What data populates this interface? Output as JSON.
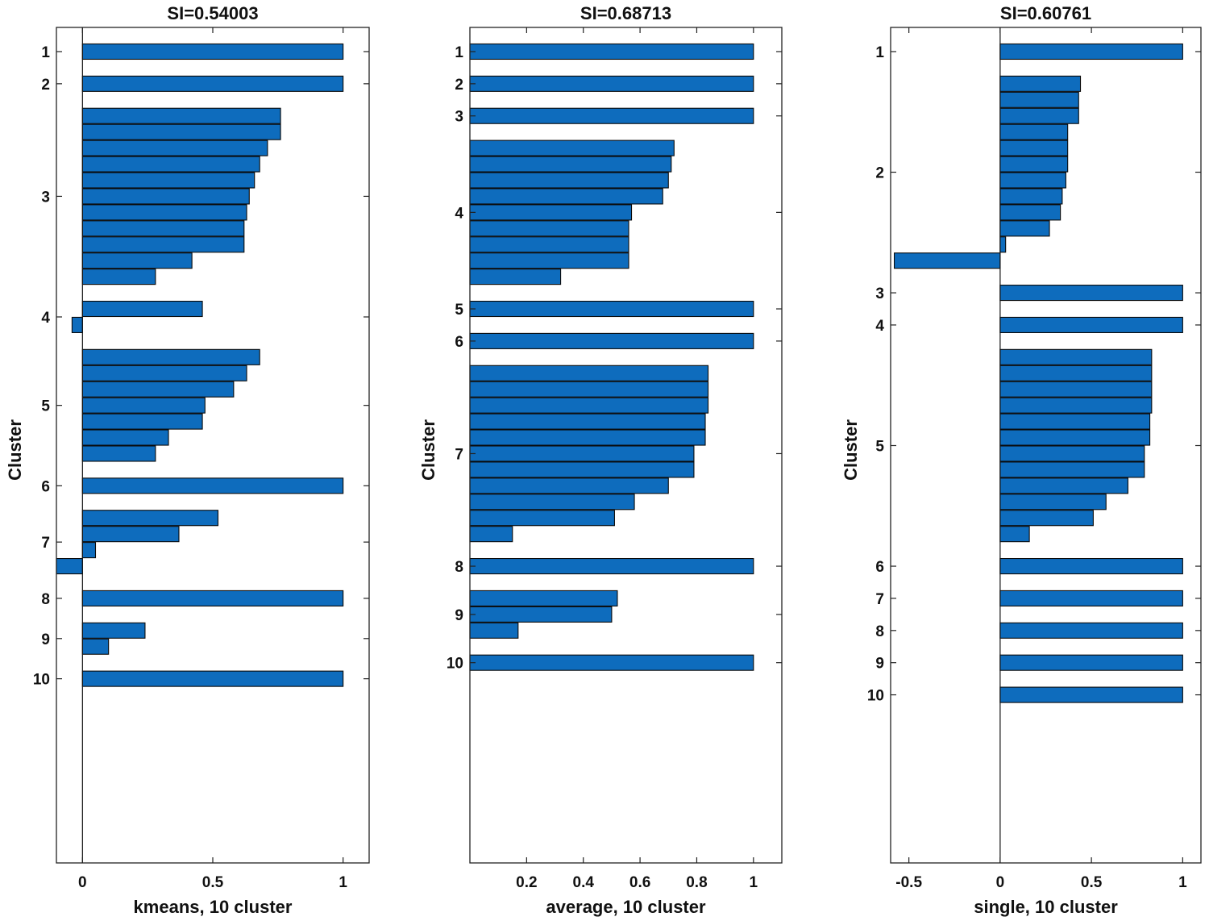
{
  "figure": {
    "background": "#ffffff",
    "bar_color": "#0e6cbd"
  },
  "chart_data": [
    {
      "type": "bar",
      "orientation": "horizontal",
      "title": "SI=0.54003",
      "xlabel": "kmeans, 10 cluster",
      "ylabel": "Cluster",
      "xlim": [
        -0.1,
        1.1
      ],
      "xticks": [
        0,
        0.5,
        1
      ],
      "xtick_labels": [
        "0",
        "0.5",
        "1"
      ],
      "ytick_labels": [
        "1",
        "2",
        "3",
        "4",
        "5",
        "6",
        "7",
        "8",
        "9",
        "10"
      ],
      "clusters": [
        {
          "label": "1",
          "values": [
            1.0
          ]
        },
        {
          "label": "2",
          "values": [
            1.0
          ]
        },
        {
          "label": "3",
          "values": [
            0.76,
            0.76,
            0.71,
            0.68,
            0.66,
            0.64,
            0.63,
            0.62,
            0.62,
            0.42,
            0.28
          ]
        },
        {
          "label": "4",
          "values": [
            0.46,
            -0.04
          ]
        },
        {
          "label": "5",
          "values": [
            0.68,
            0.63,
            0.58,
            0.47,
            0.46,
            0.33,
            0.28
          ]
        },
        {
          "label": "6",
          "values": [
            1.0
          ]
        },
        {
          "label": "7",
          "values": [
            0.52,
            0.37,
            0.05,
            -0.1
          ]
        },
        {
          "label": "8",
          "values": [
            1.0
          ]
        },
        {
          "label": "9",
          "values": [
            0.24,
            0.1
          ]
        },
        {
          "label": "10",
          "values": [
            1.0
          ]
        }
      ]
    },
    {
      "type": "bar",
      "orientation": "horizontal",
      "title": "SI=0.68713",
      "xlabel": "average, 10 cluster",
      "ylabel": "Cluster",
      "xlim": [
        0.0,
        1.1
      ],
      "xticks": [
        0.2,
        0.4,
        0.6,
        0.8,
        1
      ],
      "xtick_labels": [
        "0.2",
        "0.4",
        "0.6",
        "0.8",
        "1"
      ],
      "ytick_labels": [
        "1",
        "2",
        "3",
        "4",
        "5",
        "6",
        "7",
        "8",
        "9",
        "10"
      ],
      "clusters": [
        {
          "label": "1",
          "values": [
            1.0
          ]
        },
        {
          "label": "2",
          "values": [
            1.0
          ]
        },
        {
          "label": "3",
          "values": [
            1.0
          ]
        },
        {
          "label": "4",
          "values": [
            0.72,
            0.71,
            0.7,
            0.68,
            0.57,
            0.56,
            0.56,
            0.56,
            0.32
          ]
        },
        {
          "label": "5",
          "values": [
            1.0
          ]
        },
        {
          "label": "6",
          "values": [
            1.0
          ]
        },
        {
          "label": "7",
          "values": [
            0.84,
            0.84,
            0.84,
            0.83,
            0.83,
            0.79,
            0.79,
            0.7,
            0.58,
            0.51,
            0.15
          ]
        },
        {
          "label": "8",
          "values": [
            1.0
          ]
        },
        {
          "label": "9",
          "values": [
            0.52,
            0.5,
            0.17
          ]
        },
        {
          "label": "10",
          "values": [
            1.0
          ]
        }
      ]
    },
    {
      "type": "bar",
      "orientation": "horizontal",
      "title": "SI=0.60761",
      "xlabel": "single, 10 cluster",
      "ylabel": "Cluster",
      "xlim": [
        -0.6,
        1.1
      ],
      "xticks": [
        -0.5,
        0,
        0.5,
        1
      ],
      "xtick_labels": [
        "-0.5",
        "0",
        "0.5",
        "1"
      ],
      "ytick_labels": [
        "1",
        "2",
        "3",
        "4",
        "5",
        "6",
        "7",
        "8",
        "9",
        "10"
      ],
      "clusters": [
        {
          "label": "1",
          "values": [
            1.0
          ]
        },
        {
          "label": "2",
          "values": [
            0.44,
            0.43,
            0.43,
            0.37,
            0.37,
            0.37,
            0.36,
            0.34,
            0.33,
            0.27,
            0.03,
            -0.58
          ]
        },
        {
          "label": "3",
          "values": [
            1.0
          ]
        },
        {
          "label": "4",
          "values": [
            1.0
          ]
        },
        {
          "label": "5",
          "values": [
            0.83,
            0.83,
            0.83,
            0.83,
            0.82,
            0.82,
            0.79,
            0.79,
            0.7,
            0.58,
            0.51,
            0.16
          ]
        },
        {
          "label": "6",
          "values": [
            1.0
          ]
        },
        {
          "label": "7",
          "values": [
            1.0
          ]
        },
        {
          "label": "8",
          "values": [
            1.0
          ]
        },
        {
          "label": "9",
          "values": [
            1.0
          ]
        },
        {
          "label": "10",
          "values": [
            1.0
          ]
        }
      ]
    }
  ]
}
